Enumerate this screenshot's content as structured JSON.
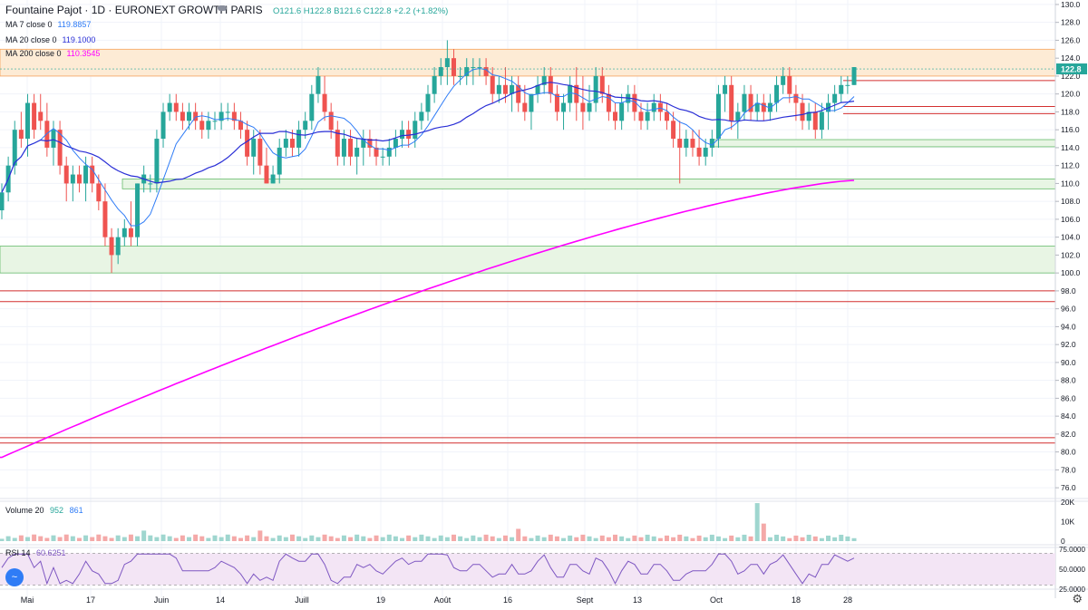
{
  "header": {
    "symbol": "Fountaine Pajot · 1D · EURONEXT GROWTH PARIS",
    "open": "O121.6",
    "high": "H122.8",
    "low": "B121.6",
    "close": "C122.8",
    "change": "+2.2 (+1.82%)"
  },
  "indicators": [
    {
      "label": "MA 7 close 0",
      "value": "119.8857",
      "color": "#2f7cf6"
    },
    {
      "label": "MA 20 close 0",
      "value": "119.1000",
      "color": "#2a2fd6"
    },
    {
      "label": "MA 200 close 0",
      "value": "110.3545",
      "color": "#ff00ff"
    }
  ],
  "volume_pane": {
    "label": "Volume 20",
    "v1": "952",
    "v2": "861",
    "ticks": [
      "20K",
      "10K",
      "0"
    ]
  },
  "rsi_pane": {
    "label": "RSI 14",
    "value": "60.6251",
    "ticks": [
      "75.0000",
      "50.0000",
      "25.0000"
    ]
  },
  "last_price_label": "122.8",
  "colors": {
    "up": "#26a69a",
    "down": "#ef5350",
    "ma7": "#2f7cf6",
    "ma20": "#2a2fd6",
    "ma200": "#ff00ff",
    "zone_green": "#e8f5e4",
    "zone_orange": "#fdebd5",
    "red_line": "#d32f2f",
    "rsi_line": "#7e57c2"
  },
  "chart_data": {
    "type": "candlestick",
    "title": "Fountaine Pajot · 1D · EURONEXT GROWTH PARIS",
    "yticks": [
      130.0,
      128.0,
      126.0,
      124.0,
      122.0,
      120.0,
      118.0,
      116.0,
      114.0,
      112.0,
      110.0,
      108.0,
      106.0,
      104.0,
      102.0,
      100.0,
      98.0,
      96.0,
      94.0,
      92.0,
      90.0,
      88.0,
      86.0,
      84.0,
      82.0,
      80.0,
      78.0,
      76.0
    ],
    "ylim": [
      75.0,
      130.5
    ],
    "xlabels": [
      "Mai",
      "17",
      "Juin",
      "14",
      "Juill",
      "19",
      "Août",
      "16",
      "Sept",
      "13",
      "Oct",
      "18",
      "28"
    ],
    "candles": [
      [
        107,
        110,
        106,
        109
      ],
      [
        109,
        113,
        108,
        112
      ],
      [
        112,
        117,
        111,
        116
      ],
      [
        116,
        118,
        114,
        115
      ],
      [
        115,
        120,
        113,
        119
      ],
      [
        119,
        120,
        115,
        116
      ],
      [
        118,
        120,
        116,
        117
      ],
      [
        117,
        119,
        113,
        114
      ],
      [
        114,
        117,
        112,
        116
      ],
      [
        116,
        117,
        111,
        112
      ],
      [
        112,
        113,
        108,
        110
      ],
      [
        110,
        112,
        108,
        111
      ],
      [
        111,
        112,
        109,
        110
      ],
      [
        110,
        113,
        108,
        112
      ],
      [
        112,
        113,
        109,
        110
      ],
      [
        110,
        111,
        107,
        108
      ],
      [
        108,
        110,
        103,
        104
      ],
      [
        104,
        105,
        100,
        102
      ],
      [
        102,
        105,
        101,
        104
      ],
      [
        104,
        106,
        103,
        105
      ],
      [
        105,
        108,
        103,
        104
      ],
      [
        104,
        110,
        103,
        110
      ],
      [
        110,
        112,
        109,
        111
      ],
      [
        110,
        111,
        109,
        110
      ],
      [
        110,
        116,
        109,
        115
      ],
      [
        115,
        119,
        114,
        118
      ],
      [
        118,
        120,
        117,
        119
      ],
      [
        119,
        120,
        117,
        118
      ],
      [
        118,
        119,
        116,
        117
      ],
      [
        117,
        119,
        116,
        118
      ],
      [
        118,
        119,
        116,
        117
      ],
      [
        117,
        118,
        115,
        116
      ],
      [
        116,
        118,
        115,
        117
      ],
      [
        117,
        118,
        116,
        117
      ],
      [
        117,
        119,
        116,
        118
      ],
      [
        118,
        119,
        117,
        118
      ],
      [
        118,
        119,
        116,
        117
      ],
      [
        117,
        118,
        115,
        116
      ],
      [
        116,
        117,
        112,
        113
      ],
      [
        113,
        116,
        111,
        115
      ],
      [
        115,
        116,
        111,
        112
      ],
      [
        112,
        114,
        110,
        110
      ],
      [
        110,
        112,
        110,
        111
      ],
      [
        111,
        115,
        110,
        114
      ],
      [
        114,
        116,
        113,
        115
      ],
      [
        115,
        116,
        113,
        114
      ],
      [
        114,
        117,
        113,
        116
      ],
      [
        116,
        118,
        115,
        117
      ],
      [
        117,
        121,
        116,
        120
      ],
      [
        120,
        123,
        119,
        122
      ],
      [
        120,
        122,
        117,
        118
      ],
      [
        118,
        119,
        115,
        116
      ],
      [
        116,
        117,
        112,
        113
      ],
      [
        113,
        116,
        112,
        115
      ],
      [
        115,
        116,
        112,
        113
      ],
      [
        113,
        115,
        111,
        114
      ],
      [
        114,
        116,
        112,
        115
      ],
      [
        115,
        116,
        113,
        114
      ],
      [
        114,
        115,
        112,
        113
      ],
      [
        113,
        114,
        112,
        113
      ],
      [
        113,
        115,
        112,
        114
      ],
      [
        114,
        116,
        113,
        115
      ],
      [
        115,
        117,
        114,
        116
      ],
      [
        116,
        117,
        114,
        115
      ],
      [
        115,
        118,
        114,
        117
      ],
      [
        117,
        119,
        116,
        118
      ],
      [
        118,
        121,
        117,
        120
      ],
      [
        120,
        123,
        119,
        122
      ],
      [
        122,
        124,
        121,
        123
      ],
      [
        123,
        126,
        121,
        124
      ],
      [
        124,
        125,
        121,
        122
      ],
      [
        122,
        123,
        121,
        122
      ],
      [
        122,
        124,
        121,
        123
      ],
      [
        123,
        124,
        121,
        123
      ],
      [
        123,
        124,
        122,
        123
      ],
      [
        123,
        124,
        121,
        122
      ],
      [
        122,
        123,
        119,
        120
      ],
      [
        120,
        122,
        119,
        121
      ],
      [
        121,
        123,
        119,
        120
      ],
      [
        120,
        122,
        118,
        121
      ],
      [
        121,
        122,
        118,
        119
      ],
      [
        119,
        121,
        117,
        118
      ],
      [
        118,
        120,
        116,
        120
      ],
      [
        120,
        122,
        119,
        121
      ],
      [
        121,
        123,
        120,
        122
      ],
      [
        122,
        123,
        119,
        120
      ],
      [
        120,
        121,
        117,
        118
      ],
      [
        118,
        120,
        116,
        119
      ],
      [
        119,
        122,
        118,
        121
      ],
      [
        121,
        123,
        117,
        119
      ],
      [
        119,
        122,
        116,
        118
      ],
      [
        118,
        121,
        117,
        119
      ],
      [
        119,
        123,
        118,
        122
      ],
      [
        122,
        123,
        119,
        120
      ],
      [
        120,
        121,
        117,
        118
      ],
      [
        118,
        119,
        116,
        117
      ],
      [
        117,
        120,
        116,
        119
      ],
      [
        119,
        121,
        118,
        120
      ],
      [
        120,
        121,
        117,
        118
      ],
      [
        118,
        119,
        116,
        117
      ],
      [
        117,
        119,
        116,
        118
      ],
      [
        118,
        120,
        117,
        119
      ],
      [
        119,
        120,
        117,
        118
      ],
      [
        118,
        119,
        116,
        117
      ],
      [
        117,
        118,
        114,
        115
      ],
      [
        115,
        117,
        110,
        114
      ],
      [
        114,
        116,
        113,
        115
      ],
      [
        115,
        116,
        113,
        114
      ],
      [
        114,
        116,
        112,
        113
      ],
      [
        113,
        115,
        112,
        114
      ],
      [
        114,
        116,
        113,
        115
      ],
      [
        115,
        121,
        114,
        120
      ],
      [
        120,
        122,
        118,
        121
      ],
      [
        121,
        122,
        116,
        117
      ],
      [
        117,
        119,
        115,
        118
      ],
      [
        118,
        121,
        117,
        120
      ],
      [
        120,
        121,
        117,
        118
      ],
      [
        118,
        120,
        117,
        119
      ],
      [
        119,
        120,
        117,
        118
      ],
      [
        118,
        120,
        117,
        119
      ],
      [
        119,
        122,
        118,
        121
      ],
      [
        121,
        123,
        120,
        122
      ],
      [
        122,
        123,
        119,
        120
      ],
      [
        120,
        121,
        117,
        119
      ],
      [
        119,
        120,
        116,
        117
      ],
      [
        117,
        119,
        116,
        118
      ],
      [
        118,
        119,
        115,
        116
      ],
      [
        116,
        119,
        115,
        118
      ],
      [
        118,
        120,
        116,
        119
      ],
      [
        119,
        121,
        118,
        120
      ],
      [
        120,
        122,
        119,
        121
      ],
      [
        121,
        122,
        120,
        121
      ],
      [
        121,
        123,
        121,
        123
      ]
    ],
    "ma200": {
      "start": 79.4,
      "end": 110.35
    },
    "zones": [
      {
        "from": 122.0,
        "to": 125.0,
        "kind": "orange"
      },
      {
        "from": 114.1,
        "to": 114.9,
        "kind": "green"
      },
      {
        "from": 109.4,
        "to": 110.5,
        "kind": "green"
      },
      {
        "from": 100.0,
        "to": 103.0,
        "kind": "green"
      }
    ],
    "hlines": [
      121.5,
      118.6,
      117.8,
      98.0,
      96.8,
      81.6,
      81.0
    ],
    "rsi": {
      "level_hi": 70,
      "level_lo": 30,
      "ylim": [
        25,
        75
      ]
    },
    "volume": {
      "ylim": [
        0,
        20000
      ]
    }
  }
}
